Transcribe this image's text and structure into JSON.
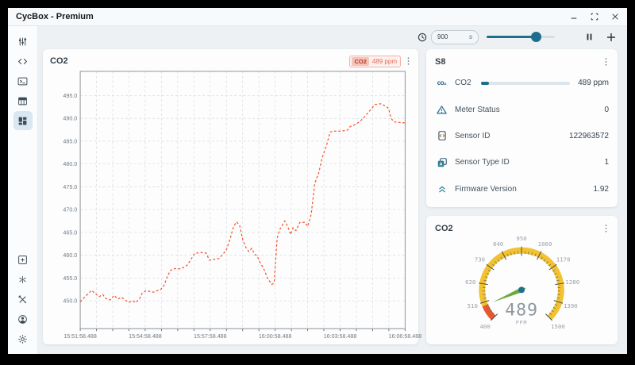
{
  "window": {
    "title": "CycBox - Premium"
  },
  "sidebar": {
    "top_items": [
      {
        "icon": "tune-icon",
        "active": false
      },
      {
        "icon": "code-icon",
        "active": false
      },
      {
        "icon": "terminal-icon",
        "active": false
      },
      {
        "icon": "table-icon",
        "active": false
      },
      {
        "icon": "dashboard-icon",
        "active": true
      }
    ],
    "bottom_items": [
      {
        "icon": "add-box-icon"
      },
      {
        "icon": "hub-icon"
      },
      {
        "icon": "tools-icon"
      },
      {
        "icon": "account-icon"
      },
      {
        "icon": "settings-icon"
      }
    ]
  },
  "toolbar": {
    "interval_value": "900",
    "interval_unit": "s",
    "slider_percent": 72
  },
  "chart_card": {
    "title": "CO2",
    "legend_series": "CO2",
    "legend_value": "489 ppm"
  },
  "sensor_card": {
    "title": "S8",
    "co2_icon_text": "co₂",
    "rows": [
      {
        "icon": "co2-icon",
        "label": "CO2",
        "value": "489 ppm",
        "progress_percent": 9
      },
      {
        "icon": "warning-icon",
        "label": "Meter Status",
        "value": "0"
      },
      {
        "icon": "sensor-id-icon",
        "label": "Sensor ID",
        "value": "122963572"
      },
      {
        "icon": "sensor-type-icon",
        "label": "Sensor Type ID",
        "value": "1"
      },
      {
        "icon": "firmware-icon",
        "label": "Firmware Version",
        "value": "1.92"
      }
    ]
  },
  "gauge": {
    "title": "CO2",
    "value": 489,
    "value_text": "489",
    "unit": "PPM",
    "min": 400,
    "max": 1500,
    "tick_labels": [
      400,
      510,
      620,
      730,
      840,
      950,
      1060,
      1170,
      1280,
      1390,
      1500
    ],
    "colors": {
      "band": "#f2c230",
      "low_band": "#e8572e",
      "needle": "#6fa93c",
      "pivot": "#1d7092",
      "value_text": "#8f979e"
    }
  },
  "chart_data": {
    "type": "line",
    "title": "CO2",
    "series": [
      {
        "name": "CO2",
        "unit": "ppm",
        "current_value": 489
      }
    ],
    "x_tick_labels": [
      "15:51:58.488",
      "15:54:58.488",
      "15:57:58.488",
      "16:00:58.488",
      "16:03:58.488",
      "16:06:58.488"
    ],
    "y_ticks": [
      450,
      455,
      460,
      465,
      470,
      475,
      480,
      485,
      490,
      495
    ],
    "ylim": [
      443.9,
      500.3
    ],
    "x_minor_divisions": 20,
    "grid": true,
    "line_color": "#f4562e",
    "line_style": "dashed",
    "points": [
      [
        0.0,
        449.8
      ],
      [
        0.016,
        451.0
      ],
      [
        0.035,
        452.3
      ],
      [
        0.046,
        451.6
      ],
      [
        0.058,
        450.9
      ],
      [
        0.069,
        451.4
      ],
      [
        0.079,
        450.5
      ],
      [
        0.093,
        450.2
      ],
      [
        0.104,
        451.2
      ],
      [
        0.116,
        450.4
      ],
      [
        0.127,
        450.8
      ],
      [
        0.139,
        450.1
      ],
      [
        0.15,
        449.7
      ],
      [
        0.162,
        450.0
      ],
      [
        0.171,
        449.6
      ],
      [
        0.183,
        450.5
      ],
      [
        0.19,
        451.6
      ],
      [
        0.201,
        452.2
      ],
      [
        0.213,
        452.1
      ],
      [
        0.225,
        451.9
      ],
      [
        0.236,
        452.2
      ],
      [
        0.248,
        452.5
      ],
      [
        0.259,
        453.5
      ],
      [
        0.266,
        455.0
      ],
      [
        0.278,
        456.7
      ],
      [
        0.294,
        457.1
      ],
      [
        0.31,
        457.0
      ],
      [
        0.329,
        457.8
      ],
      [
        0.34,
        459.0
      ],
      [
        0.352,
        460.4
      ],
      [
        0.37,
        460.6
      ],
      [
        0.387,
        460.5
      ],
      [
        0.398,
        458.9
      ],
      [
        0.414,
        459.1
      ],
      [
        0.428,
        459.3
      ],
      [
        0.44,
        460.3
      ],
      [
        0.449,
        461.0
      ],
      [
        0.461,
        463.5
      ],
      [
        0.472,
        466.3
      ],
      [
        0.481,
        467.3
      ],
      [
        0.491,
        466.5
      ],
      [
        0.5,
        463.5
      ],
      [
        0.509,
        461.8
      ],
      [
        0.519,
        460.8
      ],
      [
        0.528,
        461.5
      ],
      [
        0.537,
        460.2
      ],
      [
        0.544,
        459.9
      ],
      [
        0.553,
        458.5
      ],
      [
        0.567,
        456.7
      ],
      [
        0.576,
        455.0
      ],
      [
        0.59,
        453.6
      ],
      [
        0.597,
        454.0
      ],
      [
        0.606,
        463.7
      ],
      [
        0.613,
        465.5
      ],
      [
        0.63,
        467.5
      ],
      [
        0.639,
        466.2
      ],
      [
        0.648,
        464.5
      ],
      [
        0.655,
        466.0
      ],
      [
        0.664,
        465.4
      ],
      [
        0.676,
        467.2
      ],
      [
        0.692,
        467.2
      ],
      [
        0.7,
        466.3
      ],
      [
        0.711,
        469.0
      ],
      [
        0.722,
        475.8
      ],
      [
        0.734,
        478.0
      ],
      [
        0.745,
        481.5
      ],
      [
        0.757,
        483.8
      ],
      [
        0.769,
        487.0
      ],
      [
        0.78,
        487.2
      ],
      [
        0.803,
        487.2
      ],
      [
        0.822,
        487.4
      ],
      [
        0.831,
        488.2
      ],
      [
        0.845,
        488.6
      ],
      [
        0.861,
        489.3
      ],
      [
        0.877,
        490.5
      ],
      [
        0.889,
        491.5
      ],
      [
        0.907,
        493.0
      ],
      [
        0.926,
        493.2
      ],
      [
        0.937,
        492.8
      ],
      [
        0.949,
        492.2
      ],
      [
        0.957,
        490.0
      ],
      [
        0.965,
        489.3
      ],
      [
        0.977,
        489.1
      ],
      [
        1.0,
        489.0
      ]
    ]
  }
}
